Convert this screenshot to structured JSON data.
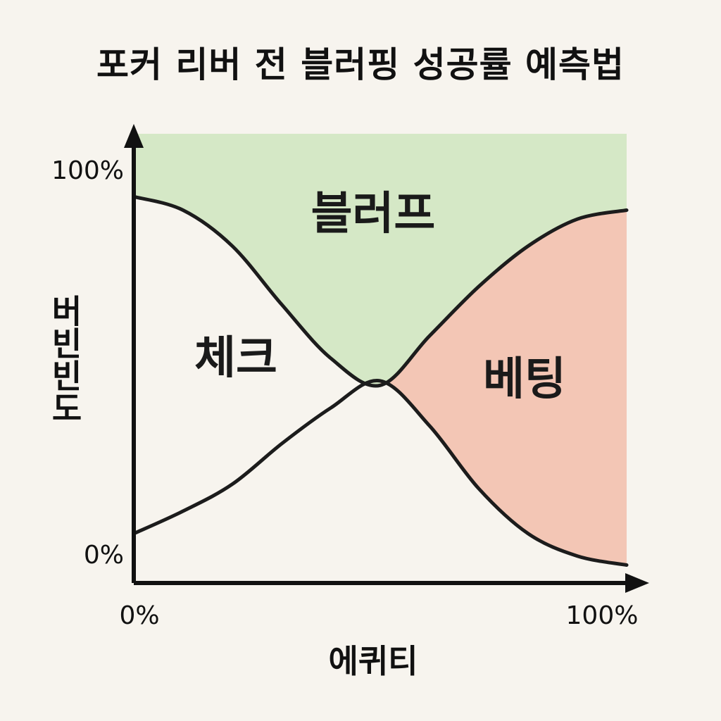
{
  "title": "포커 리버 전 블러핑 성공률 예측법",
  "chart_data": {
    "type": "area",
    "xlabel": "에퀴티",
    "ylabel": "버빈빈도",
    "x_ticks": [
      "0%",
      "100%"
    ],
    "y_ticks": [
      "0%",
      "100%"
    ],
    "xlim": [
      0,
      100
    ],
    "ylim": [
      0,
      100
    ],
    "regions": [
      "블러프",
      "체크",
      "베팅"
    ],
    "series": [
      {
        "name": "블러프",
        "x": [
          0,
          10,
          20,
          30,
          40,
          50,
          60,
          70,
          80,
          90,
          100
        ],
        "y": [
          86,
          83,
          75,
          62,
          50,
          44,
          55,
          66,
          75,
          81,
          83
        ]
      },
      {
        "name": "베팅",
        "x": [
          0,
          10,
          20,
          30,
          40,
          50,
          60,
          70,
          80,
          90,
          100
        ],
        "y": [
          11,
          16,
          22,
          31,
          39,
          45,
          35,
          21,
          11,
          6,
          4
        ]
      }
    ],
    "colors": {
      "bluff_fill": "#d5e8c6",
      "bet_fill": "#f3c6b5",
      "line": "#1c1c1c",
      "axis": "#111111"
    }
  }
}
